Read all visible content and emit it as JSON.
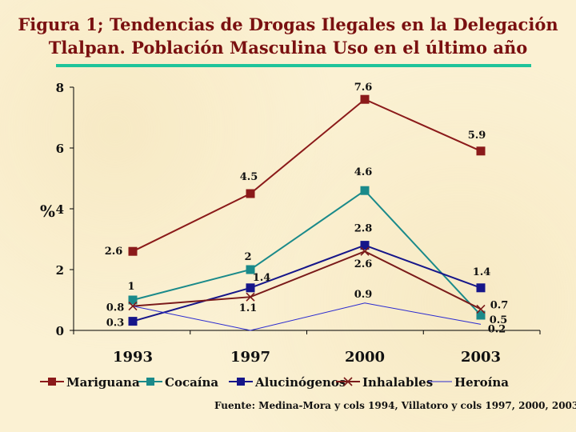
{
  "title": {
    "line1": "Figura 1; Tendencias de Drogas Ilegales en  la Delegación",
    "line2": "Tlalpan. Población Masculina Uso en el último año"
  },
  "source": "Fuente: Medina-Mora y cols 1994, Villatoro y cols 1997, 2000, 2003",
  "chart_data": {
    "type": "line",
    "categories": [
      "1993",
      "1997",
      "2000",
      "2003"
    ],
    "ylabel": "%",
    "ylim": [
      0,
      8
    ],
    "yticks": [
      "0",
      "2",
      "4",
      "6",
      "8"
    ],
    "grid": false,
    "legend_position": "bottom",
    "series": [
      {
        "name": "Mariguana",
        "color": "#8b1a1a",
        "marker": "square",
        "values": [
          2.6,
          4.5,
          7.6,
          5.9
        ],
        "labels": [
          "2.6",
          "4.5",
          "7.6",
          "5.9"
        ]
      },
      {
        "name": "Cocaína",
        "color": "#1a8a8a",
        "marker": "square",
        "values": [
          1,
          2,
          4.6,
          0.5
        ],
        "labels": [
          "1",
          "2",
          "4.6",
          "0.5"
        ]
      },
      {
        "name": "Alucinógenos",
        "color": "#16168a",
        "marker": "square",
        "values": [
          0.3,
          1.4,
          2.8,
          1.4
        ],
        "labels": [
          "0.3",
          "1.4",
          "2.8",
          "1.4"
        ]
      },
      {
        "name": "Inhalables",
        "color": "#7a1a1a",
        "marker": "x",
        "values": [
          0.8,
          1.1,
          2.6,
          0.7
        ],
        "labels": [
          "0.8",
          "1.1",
          "2.6",
          "0.7"
        ]
      },
      {
        "name": "Heroína",
        "color": "#2a2ad0",
        "marker": "none",
        "values": [
          0.8,
          0,
          0.9,
          0.2
        ],
        "labels": [
          "",
          "",
          "0.9",
          "0.2"
        ]
      }
    ]
  }
}
